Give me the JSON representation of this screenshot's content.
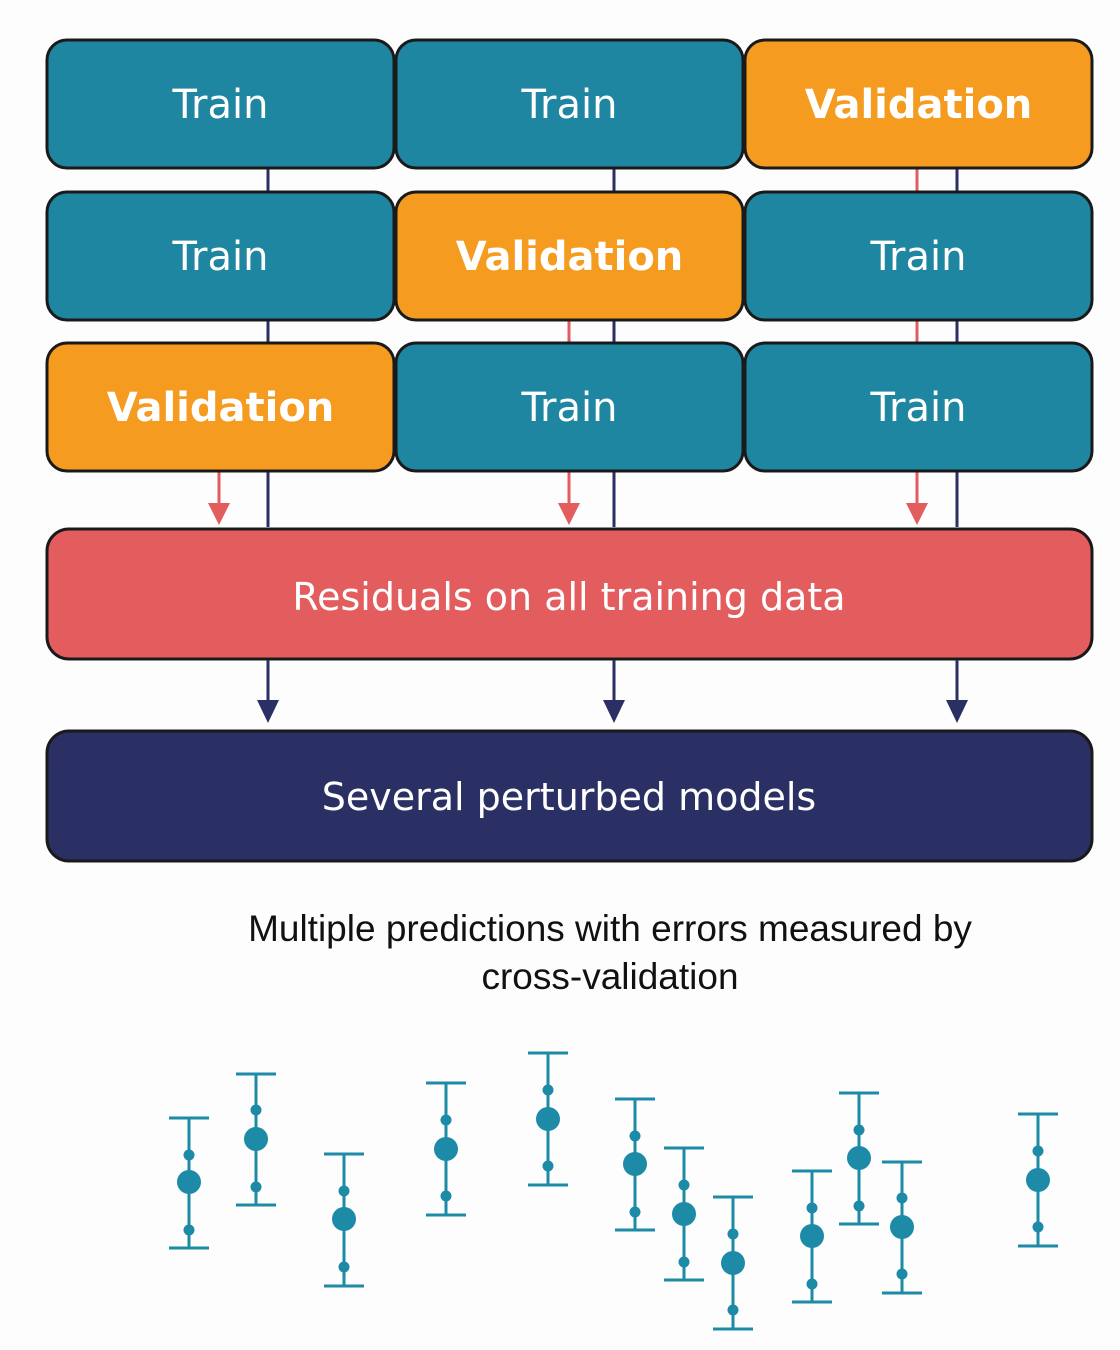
{
  "colors": {
    "train": "#1f86a1",
    "validation": "#f59b1f",
    "residuals": "#e35d5e",
    "models": "#2b3064",
    "border": "#1a1a1a",
    "connector_train": "#2b3064",
    "connector_validation": "#e35d5e",
    "errorbar": "#1d8aa7"
  },
  "folds": [
    {
      "cells": [
        {
          "label": "Train",
          "kind": "train"
        },
        {
          "label": "Train",
          "kind": "train"
        },
        {
          "label": "Validation",
          "kind": "validation"
        }
      ]
    },
    {
      "cells": [
        {
          "label": "Train",
          "kind": "train"
        },
        {
          "label": "Validation",
          "kind": "validation"
        },
        {
          "label": "Train",
          "kind": "train"
        }
      ]
    },
    {
      "cells": [
        {
          "label": "Validation",
          "kind": "validation"
        },
        {
          "label": "Train",
          "kind": "train"
        },
        {
          "label": "Train",
          "kind": "train"
        }
      ]
    }
  ],
  "residuals_box": {
    "label": "Residuals on all training data"
  },
  "models_box": {
    "label": "Several perturbed models"
  },
  "caption": {
    "line1": "Multiple predictions with errors measured by",
    "line2": "cross-validation"
  },
  "error_bars": {
    "icon": "error-bar-icon",
    "note": "schematic predictions with uncertainty ranges"
  }
}
